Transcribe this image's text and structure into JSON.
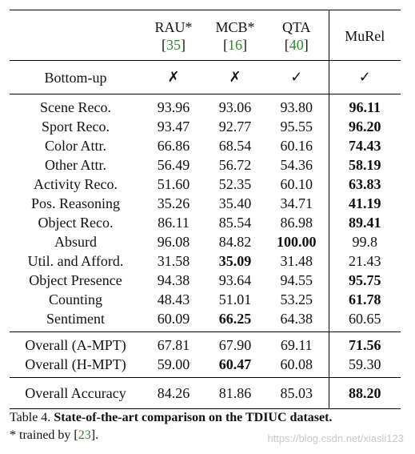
{
  "table": {
    "headers": [
      {
        "name": "",
        "ref": ""
      },
      {
        "name": "RAU*",
        "ref": "35"
      },
      {
        "name": "MCB*",
        "ref": "16"
      },
      {
        "name": "QTA",
        "ref": "40"
      },
      {
        "name": "MuRel",
        "ref": ""
      }
    ],
    "bottom_up": {
      "label": "Bottom-up",
      "values": [
        "✗",
        "✗",
        "✓",
        "✓"
      ]
    },
    "tasks": [
      {
        "label": "Scene Reco.",
        "values": [
          "93.96",
          "93.06",
          "93.80",
          "96.11"
        ],
        "bold": [
          false,
          false,
          false,
          true
        ]
      },
      {
        "label": "Sport Reco.",
        "values": [
          "93.47",
          "92.77",
          "95.55",
          "96.20"
        ],
        "bold": [
          false,
          false,
          false,
          true
        ]
      },
      {
        "label": "Color Attr.",
        "values": [
          "66.86",
          "68.54",
          "60.16",
          "74.43"
        ],
        "bold": [
          false,
          false,
          false,
          true
        ]
      },
      {
        "label": "Other Attr.",
        "values": [
          "56.49",
          "56.72",
          "54.36",
          "58.19"
        ],
        "bold": [
          false,
          false,
          false,
          true
        ]
      },
      {
        "label": "Activity Reco.",
        "values": [
          "51.60",
          "52.35",
          "60.10",
          "63.83"
        ],
        "bold": [
          false,
          false,
          false,
          true
        ]
      },
      {
        "label": "Pos. Reasoning",
        "values": [
          "35.26",
          "35.40",
          "34.71",
          "41.19"
        ],
        "bold": [
          false,
          false,
          false,
          true
        ]
      },
      {
        "label": "Object Reco.",
        "values": [
          "86.11",
          "85.54",
          "86.98",
          "89.41"
        ],
        "bold": [
          false,
          false,
          false,
          true
        ]
      },
      {
        "label": "Absurd",
        "values": [
          "96.08",
          "84.82",
          "100.00",
          "99.8"
        ],
        "bold": [
          false,
          false,
          true,
          false
        ]
      },
      {
        "label": "Util. and Afford.",
        "values": [
          "31.58",
          "35.09",
          "31.48",
          "21.43"
        ],
        "bold": [
          false,
          true,
          false,
          false
        ]
      },
      {
        "label": "Object Presence",
        "values": [
          "94.38",
          "93.64",
          "94.55",
          "95.75"
        ],
        "bold": [
          false,
          false,
          false,
          true
        ]
      },
      {
        "label": "Counting",
        "values": [
          "48.43",
          "51.01",
          "53.25",
          "61.78"
        ],
        "bold": [
          false,
          false,
          false,
          true
        ]
      },
      {
        "label": "Sentiment",
        "values": [
          "60.09",
          "66.25",
          "64.38",
          "60.65"
        ],
        "bold": [
          false,
          true,
          false,
          false
        ]
      }
    ],
    "overall": [
      {
        "label": "Overall (A-MPT)",
        "values": [
          "67.81",
          "67.90",
          "69.11",
          "71.56"
        ],
        "bold": [
          false,
          false,
          false,
          true
        ]
      },
      {
        "label": "Overall (H-MPT)",
        "values": [
          "59.00",
          "60.47",
          "60.08",
          "59.30"
        ],
        "bold": [
          false,
          true,
          false,
          false
        ]
      }
    ],
    "accuracy": {
      "label": "Overall Accuracy",
      "values": [
        "84.26",
        "81.86",
        "85.03",
        "88.20"
      ],
      "bold": [
        false,
        false,
        false,
        true
      ]
    }
  },
  "caption": {
    "label": "Table 4.",
    "title": "State-of-the-art comparison on the TDIUC dataset.",
    "note_prefix": "* trained by [",
    "note_ref": "23",
    "note_suffix": "]."
  },
  "watermark": "https://blog.csdn.net/xiasli123",
  "colors": {
    "ref_green": "#2a8a2a"
  }
}
